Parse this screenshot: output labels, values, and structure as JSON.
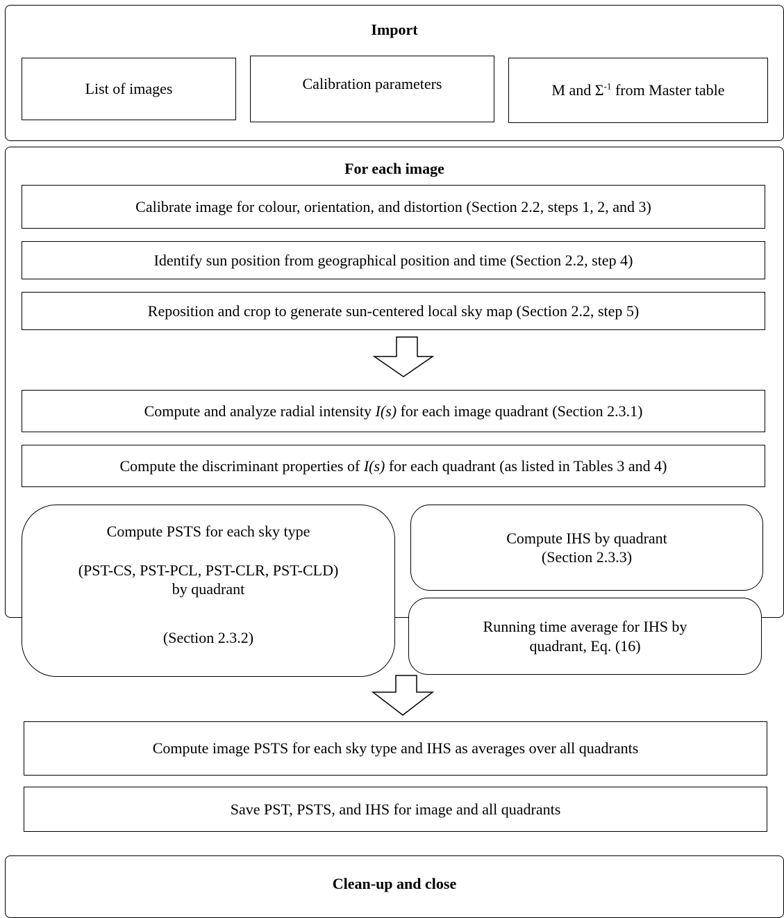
{
  "import_panel": {
    "title": "Import",
    "list_images": "List of images",
    "calibration": "Calibration parameters",
    "master_prefix": "M and Σ",
    "master_sup": "-1",
    "master_suffix": " from Master table"
  },
  "each_panel": {
    "title": "For each image",
    "step_calibrate": "Calibrate image for colour, orientation, and distortion (Section 2.2, steps 1, 2, and 3)",
    "step_identify": "Identify sun position from geographical position and time (Section 2.2, step 4)",
    "step_reposition": "Reposition and crop to generate sun-centered local sky map (Section 2.2, step 5)",
    "radial_prefix": "Compute and analyze radial intensity ",
    "radial_italic": "I(s)",
    "radial_suffix": " for each image quadrant (Section 2.3.1)",
    "disc_prefix": "Compute the discriminant properties of ",
    "disc_italic": "I(s)",
    "disc_suffix": " for each quadrant (as listed in Tables 3 and 4)",
    "psts_line1": "Compute PSTS for each sky type",
    "psts_line2": "(PST-CS, PST-PCL, PST-CLR, PST-CLD)",
    "psts_line3": "by quadrant",
    "psts_line4": "(Section 2.3.2)",
    "ihs_line1": "Compute IHS by quadrant",
    "ihs_line2": "(Section 2.3.3)",
    "running_line1": "Running time average for IHS by",
    "running_line2": "quadrant, Eq. (16)",
    "step_image_psts": "Compute image PSTS for each sky type and IHS as averages over all quadrants",
    "step_save": "Save PST, PSTS, and IHS for image and all quadrants"
  },
  "cleanup_panel": {
    "title": "Clean-up and close"
  }
}
